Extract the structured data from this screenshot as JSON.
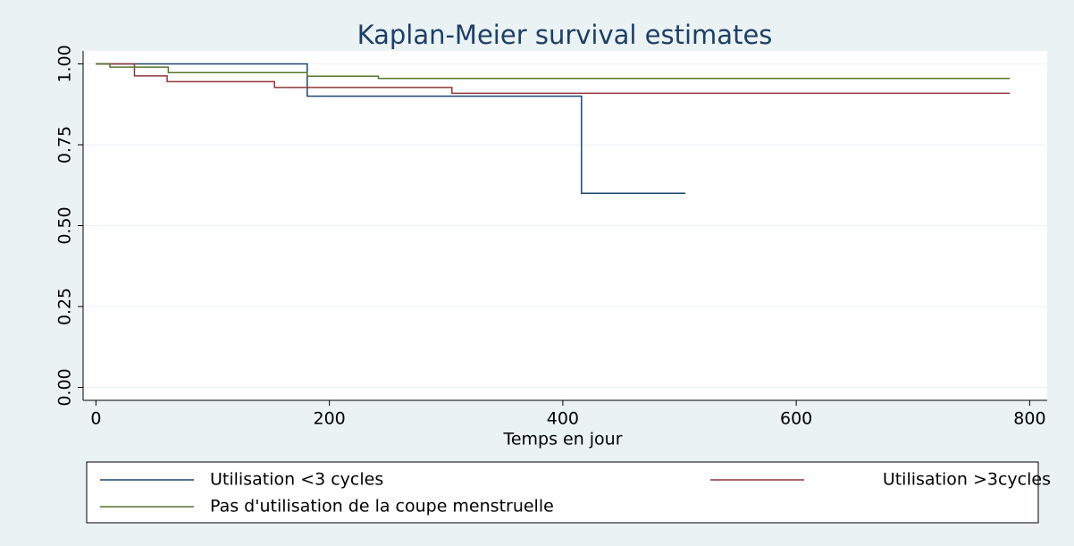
{
  "chart_data": {
    "type": "line",
    "title": "Kaplan-Meier survival estimates",
    "x_label": "Temps en jour",
    "series": [
      {
        "name": "Utilisation <3 cycles",
        "color": "#1a476f",
        "x": [
          0,
          181,
          181,
          416,
          416,
          505
        ],
        "values": [
          1,
          1,
          0.9,
          0.9,
          0.6,
          0.6
        ]
      },
      {
        "name": "Utilisation >3cycles",
        "color": "#90353b",
        "x": [
          0,
          33,
          33,
          61,
          61,
          153,
          153,
          305,
          305,
          783
        ],
        "values": [
          1,
          1,
          0.963,
          0.963,
          0.945,
          0.945,
          0.927,
          0.927,
          0.909,
          0.909
        ]
      },
      {
        "name": "Pas d'utilisation de la coupe menstruelle",
        "color": "#55752f",
        "x": [
          0,
          12,
          12,
          62,
          62,
          181,
          181,
          242,
          242,
          783
        ],
        "values": [
          1,
          1,
          0.99,
          0.99,
          0.973,
          0.973,
          0.962,
          0.962,
          0.955,
          0.955
        ]
      }
    ],
    "xlim": [
      -11,
      815
    ],
    "ylim": [
      -0.04,
      1.04
    ],
    "xticks": [
      0,
      200,
      400,
      600,
      800
    ],
    "yticks": [
      {
        "value": 0,
        "label": "0.00"
      },
      0.25,
      {
        "value": 0.5,
        "label": "0.50"
      },
      0.75,
      {
        "value": 1,
        "label": "1.00"
      }
    ],
    "grid": true
  }
}
